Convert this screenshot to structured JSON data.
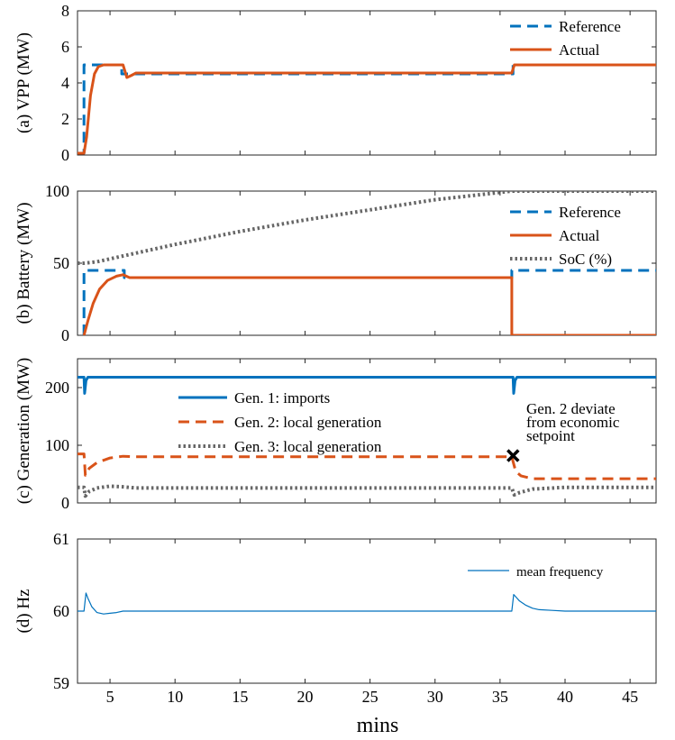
{
  "figure": {
    "xlabel": "mins"
  },
  "chart_data": [
    {
      "type": "line",
      "ylabel": "(a) VPP (MW)",
      "xlim": [
        2.5,
        47
      ],
      "ylim": [
        0,
        8
      ],
      "xticks": [
        5,
        10,
        15,
        20,
        25,
        30,
        35,
        40,
        45
      ],
      "yticks": [
        0,
        2,
        4,
        6,
        8
      ],
      "legend_position": "top-right",
      "series": [
        {
          "name": "Reference",
          "color": "#0072BD",
          "style": "dashed",
          "x": [
            2.5,
            3.0,
            3.0,
            5.9,
            5.9,
            36.0,
            36.0,
            47
          ],
          "y": [
            0.1,
            0.1,
            5.0,
            5.0,
            4.5,
            4.5,
            5.0,
            5.0
          ]
        },
        {
          "name": "Actual",
          "color": "#D95319",
          "style": "solid",
          "x": [
            2.5,
            3.0,
            3.2,
            3.5,
            3.8,
            4.1,
            4.5,
            5.0,
            5.5,
            6.0,
            6.3,
            6.6,
            7.0,
            10,
            20,
            30,
            35.9,
            36.1,
            36.5,
            40,
            47
          ],
          "y": [
            0.1,
            0.1,
            1.0,
            3.3,
            4.5,
            4.9,
            5.0,
            5.0,
            5.0,
            5.0,
            4.3,
            4.4,
            4.55,
            4.55,
            4.55,
            4.55,
            4.55,
            5.0,
            5.0,
            5.0,
            5.0
          ]
        }
      ]
    },
    {
      "type": "line",
      "ylabel": "(b) Battery (MW)",
      "xlim": [
        2.5,
        47
      ],
      "ylim": [
        0,
        100
      ],
      "yticks": [
        0,
        50,
        100
      ],
      "legend_position": "top-right",
      "series": [
        {
          "name": "Reference",
          "color": "#0072BD",
          "style": "dashed",
          "x": [
            3.0,
            3.0,
            6.1,
            6.1,
            35.9,
            35.9,
            47
          ],
          "y": [
            0,
            45,
            45,
            40,
            40,
            45,
            45
          ]
        },
        {
          "name": "Actual",
          "color": "#D95319",
          "style": "solid",
          "x": [
            3.0,
            3.3,
            3.7,
            4.2,
            4.8,
            5.5,
            6.0,
            6.5,
            7.0,
            10,
            20,
            30,
            35.9,
            35.9,
            47
          ],
          "y": [
            0,
            10,
            22,
            32,
            38,
            41,
            42,
            40,
            40,
            40,
            40,
            40,
            40,
            0,
            0
          ]
        },
        {
          "name": "SoC (%)",
          "color": "#666666",
          "style": "dotted",
          "x": [
            2.5,
            3.0,
            4.0,
            5.0,
            6.0,
            7.0,
            10,
            15,
            20,
            25,
            30,
            35.9,
            40,
            47
          ],
          "y": [
            50,
            50,
            51,
            53,
            55,
            57,
            63,
            72,
            80,
            87,
            94,
            100,
            100,
            100
          ]
        }
      ]
    },
    {
      "type": "line",
      "ylabel": "(c) Generation (MW)",
      "xlim": [
        2.5,
        47
      ],
      "ylim": [
        0,
        250
      ],
      "yticks": [
        0,
        100,
        200
      ],
      "legend_position": "top-center",
      "annotation": {
        "lines": [
          "Gen. 2 deviate",
          "from economic",
          "setpoint"
        ],
        "marker_x": 36,
        "marker_y": 82
      },
      "series": [
        {
          "name": "Gen. 1: imports",
          "color": "#0072BD",
          "style": "solid",
          "x": [
            2.5,
            3.0,
            3.05,
            3.15,
            3.3,
            36.0,
            36.05,
            36.15,
            36.3,
            47
          ],
          "y": [
            218,
            218,
            190,
            212,
            218,
            218,
            190,
            212,
            218,
            218
          ]
        },
        {
          "name": "Gen. 2: local generation",
          "color": "#D95319",
          "style": "dashed",
          "x": [
            2.5,
            3.0,
            3.1,
            3.4,
            4.0,
            5.0,
            6.0,
            7.0,
            10,
            20,
            30,
            35.9,
            36.2,
            36.6,
            37.5,
            40,
            47
          ],
          "y": [
            85,
            85,
            48,
            60,
            70,
            78,
            81,
            80,
            80,
            80,
            80,
            80,
            55,
            47,
            42,
            42,
            42
          ]
        },
        {
          "name": "Gen. 3: local generation",
          "color": "#666666",
          "style": "dotted",
          "x": [
            2.5,
            3.0,
            3.1,
            3.4,
            4.0,
            5.0,
            6.0,
            7.0,
            10,
            20,
            30,
            35.9,
            36.1,
            36.5,
            37.5,
            40,
            47
          ],
          "y": [
            27,
            27,
            12,
            20,
            26,
            29,
            28,
            26,
            26,
            26,
            26,
            26,
            14,
            18,
            24,
            27,
            27
          ]
        }
      ]
    },
    {
      "type": "line",
      "ylabel": "(d) Hz",
      "xlim": [
        2.5,
        47
      ],
      "ylim": [
        59,
        61
      ],
      "yticks": [
        59,
        60,
        61
      ],
      "legend_position": "top-right",
      "series": [
        {
          "name": "mean frequency",
          "color": "#0072BD",
          "style": "solid",
          "x": [
            2.5,
            3.0,
            3.15,
            3.3,
            3.6,
            4.0,
            4.5,
            5.0,
            5.5,
            6.0,
            7.0,
            35.9,
            36.05,
            36.2,
            36.5,
            37,
            37.5,
            38,
            39,
            40,
            47
          ],
          "y": [
            60.0,
            60.0,
            60.25,
            60.18,
            60.06,
            59.98,
            59.96,
            59.97,
            59.98,
            60.0,
            60.0,
            60.0,
            60.23,
            60.2,
            60.14,
            60.08,
            60.04,
            60.02,
            60.01,
            60.0,
            60.0
          ]
        }
      ]
    }
  ]
}
